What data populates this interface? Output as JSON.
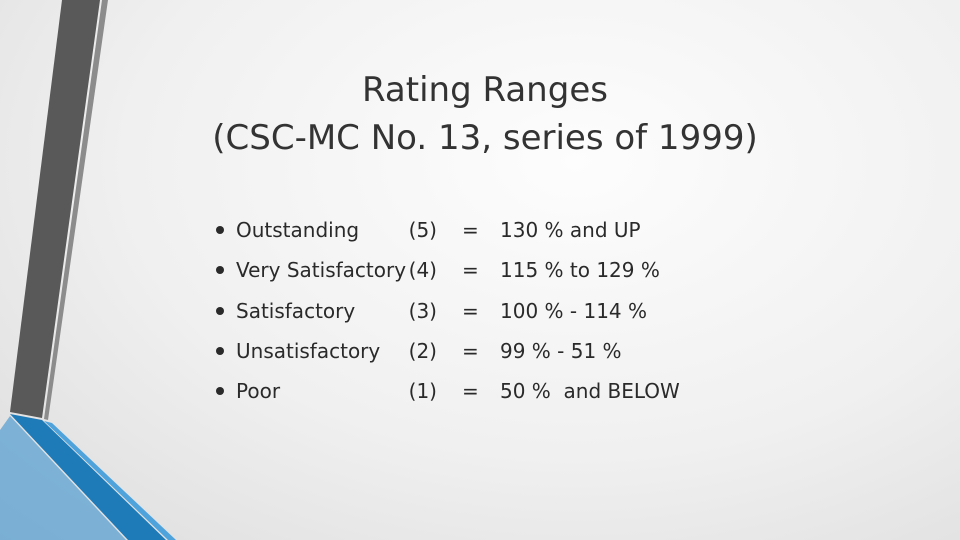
{
  "title": [
    "Rating Ranges",
    "(CSC-MC No. 13, series of 1999)"
  ],
  "items": [
    {
      "label": "Outstanding",
      "rank": "(5)",
      "sep": "=",
      "range": "130 % and UP"
    },
    {
      "label": "Very Satisfactory",
      "rank": "(4)",
      "sep": "=",
      "range": "115 % to 129 %"
    },
    {
      "label": "Satisfactory",
      "rank": "(3)",
      "sep": "=",
      "range": "100 % - 114 %"
    },
    {
      "label": "Unsatisfactory",
      "rank": "(2)",
      "sep": "=",
      "range": "99 % - 51 %"
    },
    {
      "label": "Poor",
      "rank": "(1)",
      "sep": "=",
      "range": "50 %  and BELOW"
    }
  ]
}
